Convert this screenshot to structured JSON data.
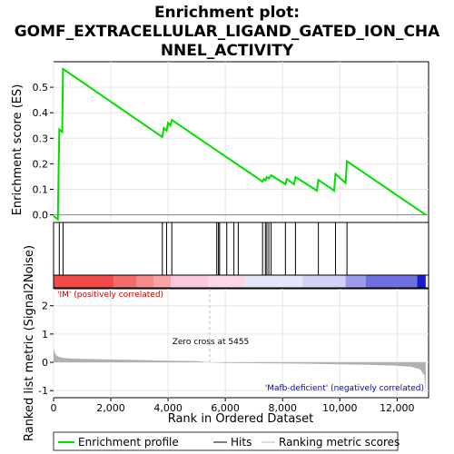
{
  "chart_data": {
    "type": "line",
    "title_lines": [
      "Enrichment plot:",
      "GOMF_EXTRACELLULAR_LIGAND_GATED_ION_CHA",
      "NNEL_ACTIVITY"
    ],
    "top_panel": {
      "ylabel": "Enrichment score (ES)",
      "yticks": [
        0.0,
        0.1,
        0.2,
        0.3,
        0.4,
        0.5
      ],
      "ylim": [
        -0.03,
        0.6
      ],
      "es_profile": [
        [
          0,
          -0.005
        ],
        [
          60,
          -0.01
        ],
        [
          150,
          -0.018
        ],
        [
          200,
          0.335
        ],
        [
          300,
          0.325
        ],
        [
          330,
          0.572
        ],
        [
          3800,
          0.305
        ],
        [
          3850,
          0.34
        ],
        [
          3950,
          0.33
        ],
        [
          4000,
          0.36
        ],
        [
          4080,
          0.35
        ],
        [
          4130,
          0.372
        ],
        [
          7300,
          0.13
        ],
        [
          7350,
          0.14
        ],
        [
          7400,
          0.135
        ],
        [
          7450,
          0.148
        ],
        [
          7520,
          0.142
        ],
        [
          7600,
          0.155
        ],
        [
          8100,
          0.12
        ],
        [
          8150,
          0.14
        ],
        [
          8400,
          0.12
        ],
        [
          8450,
          0.148
        ],
        [
          9200,
          0.095
        ],
        [
          9250,
          0.137
        ],
        [
          9800,
          0.095
        ],
        [
          9850,
          0.16
        ],
        [
          10200,
          0.125
        ],
        [
          10250,
          0.21
        ],
        [
          13000,
          0.0
        ]
      ],
      "hits": [
        200,
        330,
        3800,
        3950,
        4130,
        5700,
        5760,
        5800,
        6050,
        6300,
        6450,
        7300,
        7400,
        7450,
        7520,
        7600,
        8100,
        8450,
        9250,
        9850,
        10250
      ]
    },
    "middle_panel": {
      "positive_label": "'IM' (positively correlated)",
      "negative_label": "'Mafb-deficient' (negatively correlated)",
      "zero_cross_label": "Zero cross at 5455",
      "zero_cross": 5455
    },
    "bottom_panel": {
      "ylabel_line1": "Ranked list metric (Signal2Noise)",
      "yticks": [
        -1,
        0,
        1,
        2
      ],
      "ylim": [
        -1.25,
        2.6
      ],
      "metric_curve": [
        [
          0,
          0.55
        ],
        [
          30,
          0.38
        ],
        [
          80,
          0.26
        ],
        [
          200,
          0.18
        ],
        [
          500,
          0.14
        ],
        [
          1000,
          0.12
        ],
        [
          2000,
          0.1
        ],
        [
          3000,
          0.08
        ],
        [
          4000,
          0.06
        ],
        [
          5000,
          0.04
        ],
        [
          5455,
          0.0
        ],
        [
          6000,
          -0.02
        ],
        [
          7000,
          -0.03
        ],
        [
          8000,
          -0.04
        ],
        [
          9000,
          -0.05
        ],
        [
          10000,
          -0.07
        ],
        [
          11000,
          -0.09
        ],
        [
          12000,
          -0.12
        ],
        [
          12500,
          -0.16
        ],
        [
          12800,
          -0.25
        ],
        [
          12950,
          -0.45
        ],
        [
          13000,
          -1.05
        ]
      ]
    },
    "x_axis": {
      "xlabel": "Rank in Ordered Dataset",
      "xticks": [
        0,
        2000,
        4000,
        6000,
        8000,
        10000,
        12000
      ],
      "xtick_labels": [
        "0",
        "2,000",
        "4,000",
        "6,000",
        "8,000",
        "10,000",
        "12,000"
      ],
      "xlim": [
        0,
        13100
      ]
    },
    "legend": {
      "items": [
        "Enrichment profile",
        "Hits",
        "Ranking metric scores"
      ],
      "placement": "bottom"
    },
    "colors": {
      "profile": "#00dd00",
      "positive_label": "#cc0000",
      "negative_label": "#0000cc",
      "metric_fill": "#b0b0b0",
      "zero_cross_line": "#bbbbbb"
    }
  }
}
